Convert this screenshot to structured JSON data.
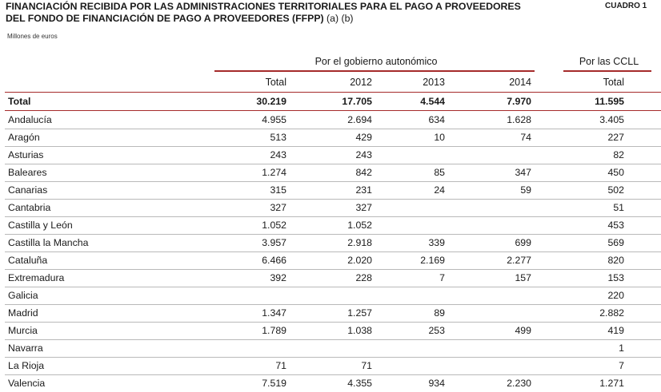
{
  "title": {
    "line1": "FINANCIACIÓN RECIBIDA POR LAS ADMINISTRACIONES TERRITORIALES PARA EL PAGO A PROVEEDORES",
    "line2": "DEL FONDO DE FINANCIACIÓN DE PAGO A PROVEEDORES (FFPP)",
    "notes": "(a) (b)"
  },
  "cuadro": "CUADRO 1",
  "units": "Millones de euros",
  "groups": {
    "autonomico": "Por el gobierno autonómico",
    "ccll": "Por las CCLL"
  },
  "columns": [
    "Total",
    "2012",
    "2013",
    "2014",
    "Total"
  ],
  "total_row": {
    "name": "Total",
    "values": [
      "30.219",
      "17.705",
      "4.544",
      "7.970",
      "11.595"
    ]
  },
  "rows": [
    {
      "name": "Andalucía",
      "values": [
        "4.955",
        "2.694",
        "634",
        "1.628",
        "3.405"
      ]
    },
    {
      "name": "Aragón",
      "values": [
        "513",
        "429",
        "10",
        "74",
        "227"
      ]
    },
    {
      "name": "Asturias",
      "values": [
        "243",
        "243",
        "",
        "",
        "82"
      ]
    },
    {
      "name": "Baleares",
      "values": [
        "1.274",
        "842",
        "85",
        "347",
        "450"
      ]
    },
    {
      "name": "Canarias",
      "values": [
        "315",
        "231",
        "24",
        "59",
        "502"
      ]
    },
    {
      "name": "Cantabria",
      "values": [
        "327",
        "327",
        "",
        "",
        "51"
      ]
    },
    {
      "name": "Castilla y León",
      "values": [
        "1.052",
        "1.052",
        "",
        "",
        "453"
      ]
    },
    {
      "name": "Castilla la Mancha",
      "values": [
        "3.957",
        "2.918",
        "339",
        "699",
        "569"
      ]
    },
    {
      "name": "Cataluña",
      "values": [
        "6.466",
        "2.020",
        "2.169",
        "2.277",
        "820"
      ]
    },
    {
      "name": "Extremadura",
      "values": [
        "392",
        "228",
        "7",
        "157",
        "153"
      ]
    },
    {
      "name": "Galicia",
      "values": [
        "",
        "",
        "",
        "",
        "220"
      ]
    },
    {
      "name": "Madrid",
      "values": [
        "1.347",
        "1.257",
        "89",
        "",
        "2.882"
      ]
    },
    {
      "name": "Murcia",
      "values": [
        "1.789",
        "1.038",
        "253",
        "499",
        "419"
      ]
    },
    {
      "name": "Navarra",
      "values": [
        "",
        "",
        "",
        "",
        "1"
      ]
    },
    {
      "name": "La Rioja",
      "values": [
        "71",
        "71",
        "",
        "",
        "7"
      ]
    },
    {
      "name": "Valencia",
      "values": [
        "7.519",
        "4.355",
        "934",
        "2.230",
        "1.271"
      ]
    }
  ],
  "colors": {
    "rule_red": "#a52a2a",
    "rule_grey": "#b9b9b9"
  }
}
